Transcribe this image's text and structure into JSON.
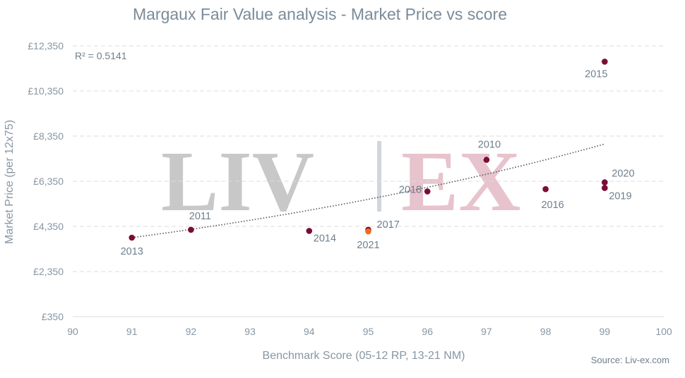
{
  "chart_data": {
    "type": "scatter",
    "title": "Margaux Fair Value analysis - Market Price vs score",
    "xlabel": "Benchmark Score (05-12 RP, 13-21 NM)",
    "ylabel": "Market Price (per 12x75)",
    "xlim": [
      90,
      100
    ],
    "ylim": [
      350,
      12350
    ],
    "x_ticks": [
      90,
      91,
      92,
      93,
      94,
      95,
      96,
      97,
      98,
      99,
      100
    ],
    "y_ticks": [
      {
        "value": 350,
        "label": "£350"
      },
      {
        "value": 2350,
        "label": "£2,350"
      },
      {
        "value": 4350,
        "label": "£4,350"
      },
      {
        "value": 6350,
        "label": "£6,350"
      },
      {
        "value": 8350,
        "label": "£8,350"
      },
      {
        "value": 10350,
        "label": "£10,350"
      },
      {
        "value": 12350,
        "label": "£12,350"
      }
    ],
    "grid": true,
    "legend": false,
    "annotation": "R² = 0.5141",
    "trendline": {
      "type": "exponential",
      "style": "dotted",
      "x_range": [
        91,
        99
      ],
      "y_start": 3850,
      "y_end": 8000
    },
    "points": [
      {
        "label": "2013",
        "x": 91,
        "y": 3850
      },
      {
        "label": "2011",
        "x": 92,
        "y": 4200
      },
      {
        "label": "2014",
        "x": 94,
        "y": 4150
      },
      {
        "label": "2017",
        "x": 95,
        "y": 4200
      },
      {
        "label": "2021",
        "x": 95,
        "y": 4130,
        "highlight": true
      },
      {
        "label": "2018",
        "x": 96,
        "y": 5900
      },
      {
        "label": "2010",
        "x": 97,
        "y": 7300
      },
      {
        "label": "2016",
        "x": 98,
        "y": 6000
      },
      {
        "label": "2015",
        "x": 99,
        "y": 11650
      },
      {
        "label": "2020",
        "x": 99,
        "y": 6300
      },
      {
        "label": "2019",
        "x": 99,
        "y": 6050
      }
    ],
    "colors": {
      "point": "#7a0d35",
      "highlight": "#f26b1d",
      "grid": "#dcdcdc",
      "trend": "#555555",
      "watermark_liv": "#c8c8c8",
      "watermark_ex": "#e7c3cd",
      "watermark_bar": "#cfd6de"
    }
  },
  "source": "Source: Liv-ex.com",
  "watermark": {
    "left": "LIV",
    "right": "EX"
  }
}
